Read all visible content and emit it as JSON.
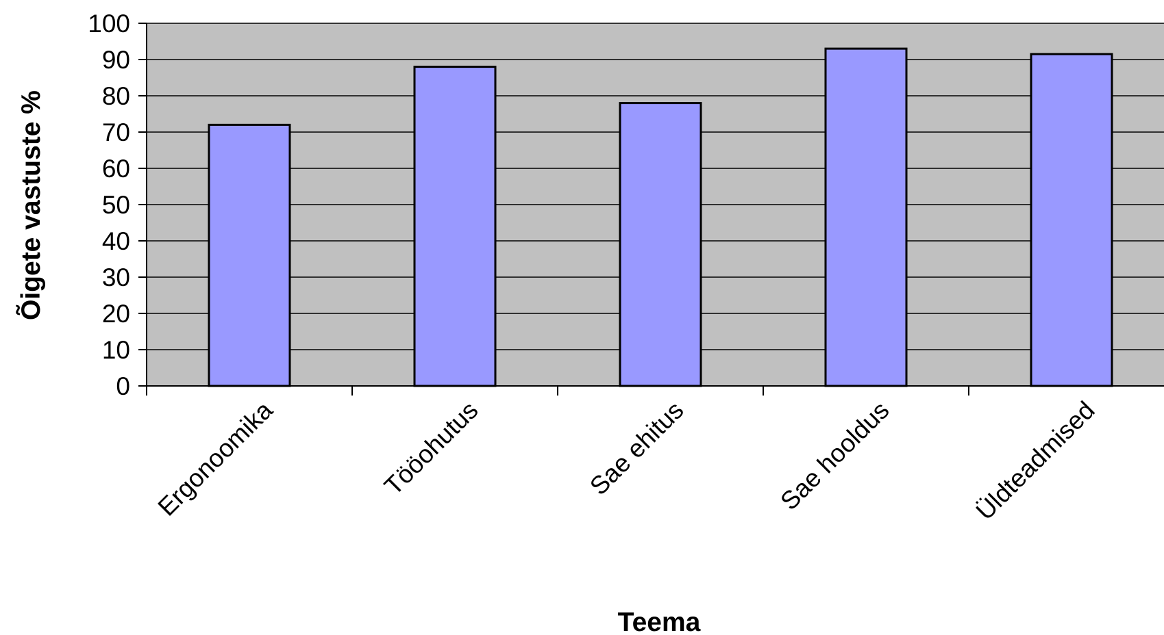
{
  "chart_data": {
    "type": "bar",
    "title": "",
    "xlabel": "Teema",
    "ylabel": "Õigete vastuste %",
    "categories": [
      "Ergonoomika",
      "Tööohutus",
      "Sae ehitus",
      "Sae hooldus",
      "Üldteadmised"
    ],
    "values": [
      72,
      88,
      78,
      93,
      91.5
    ],
    "ylim": [
      0,
      100
    ],
    "yticks": [
      "0",
      "10",
      "20",
      "30",
      "40",
      "50",
      "60",
      "70",
      "80",
      "90",
      "100"
    ],
    "grid": true,
    "legend": "none",
    "colors": {
      "bar_fill": "#9999ff",
      "bar_stroke": "#000000",
      "plot_background": "#c0c0c0",
      "gridline": "#000000"
    }
  }
}
